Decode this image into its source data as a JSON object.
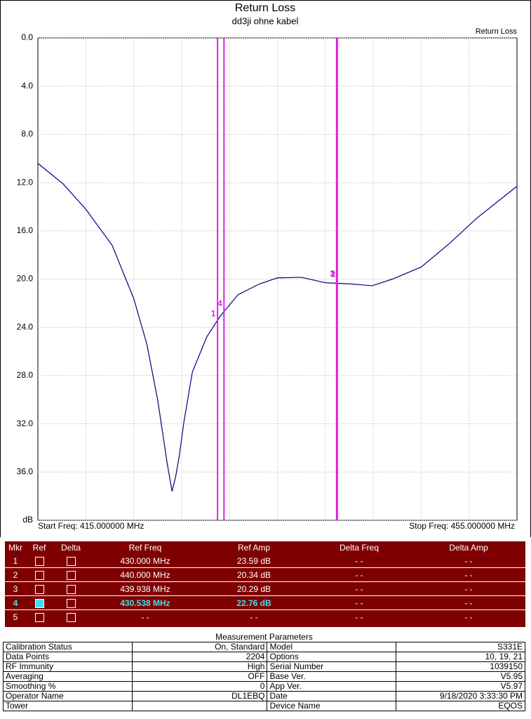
{
  "chart_data": {
    "type": "line",
    "title": "Return Loss",
    "subtitle": "dd3ji ohne kabel",
    "y_inverted": true,
    "ylim": [
      0,
      40
    ],
    "yticks": [
      {
        "value": 0,
        "label": "0.0"
      },
      {
        "value": 4,
        "label": "4.0"
      },
      {
        "value": 8,
        "label": "8.0"
      },
      {
        "value": 12,
        "label": "12.0"
      },
      {
        "value": 16,
        "label": "16.0"
      },
      {
        "value": 20,
        "label": "20.0"
      },
      {
        "value": 24,
        "label": "24.0"
      },
      {
        "value": 28,
        "label": "28.0"
      },
      {
        "value": 32,
        "label": "32.0"
      },
      {
        "value": 36,
        "label": "36.0"
      },
      {
        "value": 40,
        "label": "dB"
      }
    ],
    "xlim": [
      415,
      455
    ],
    "xgrid": [
      419,
      423,
      427,
      431,
      435,
      439,
      443,
      447,
      451
    ],
    "start_label": "Start Freq: 415.000000 MHz",
    "stop_label": "Stop Freq: 455.000000 MHz",
    "grid": true,
    "series": [
      {
        "name": "Return Loss",
        "color": "#000080",
        "x": [
          415,
          417.1,
          419,
          421.2,
          423,
          424.1,
          425,
          425.8,
          426.2,
          426.5,
          426.8,
          427.2,
          427.9,
          429.1,
          430.2,
          431.7,
          433.5,
          435,
          437,
          439,
          441.1,
          442.9,
          444.6,
          447,
          449.3,
          451.7,
          455
        ],
        "values": [
          10.4,
          12.1,
          14.2,
          17.2,
          21.6,
          25.4,
          30.0,
          35.3,
          37.6,
          36.4,
          34.7,
          31.8,
          27.7,
          24.8,
          23.1,
          21.3,
          20.4,
          19.9,
          19.85,
          20.3,
          20.4,
          20.55,
          20.0,
          19.0,
          17.1,
          14.9,
          12.3
        ]
      }
    ],
    "markers": {
      "color": "#e020e0",
      "labels": [
        "1",
        "2",
        "3",
        "4"
      ],
      "freqs": [
        430.0,
        440.0,
        439.938,
        430.538
      ],
      "amps": [
        23.59,
        20.34,
        20.29,
        22.76
      ]
    }
  },
  "marker_table": {
    "header": [
      "Mkr",
      "Ref",
      "Delta",
      "Ref Freq",
      "Ref Amp",
      "Delta Freq",
      "Delta Amp"
    ],
    "rows": [
      [
        "1",
        "430.000 MHz",
        "23.59 dB",
        "- -",
        "- -"
      ],
      [
        "2",
        "440.000 MHz",
        "20.34 dB",
        "- -",
        "- -"
      ],
      [
        "3",
        "439.938 MHz",
        "20.29 dB",
        "- -",
        "- -"
      ],
      [
        "4",
        "430.538 MHz",
        "22.76 dB",
        "- -",
        "- -"
      ],
      [
        "5",
        "- -",
        "- -",
        "- -",
        "- -"
      ]
    ],
    "selected_row": 3
  },
  "parameters": {
    "title": "Measurement Parameters",
    "rows": [
      [
        "Calibration Status",
        "On, Standard",
        "Model",
        "S331E"
      ],
      [
        "Data Points",
        "2204",
        "Options",
        "10, 19, 21"
      ],
      [
        "RF Immunity",
        "High",
        "Serial Number",
        "1039150"
      ],
      [
        "Averaging",
        "OFF",
        "Base Ver.",
        "V5.95"
      ],
      [
        "Smoothing %",
        "0",
        "App Ver.",
        "V5.97"
      ],
      [
        "Operator Name",
        "DL1EBQ",
        "Date",
        "9/18/2020 3:33:30 PM"
      ],
      [
        "Tower",
        null,
        "Device Name",
        "EQOS"
      ]
    ]
  }
}
